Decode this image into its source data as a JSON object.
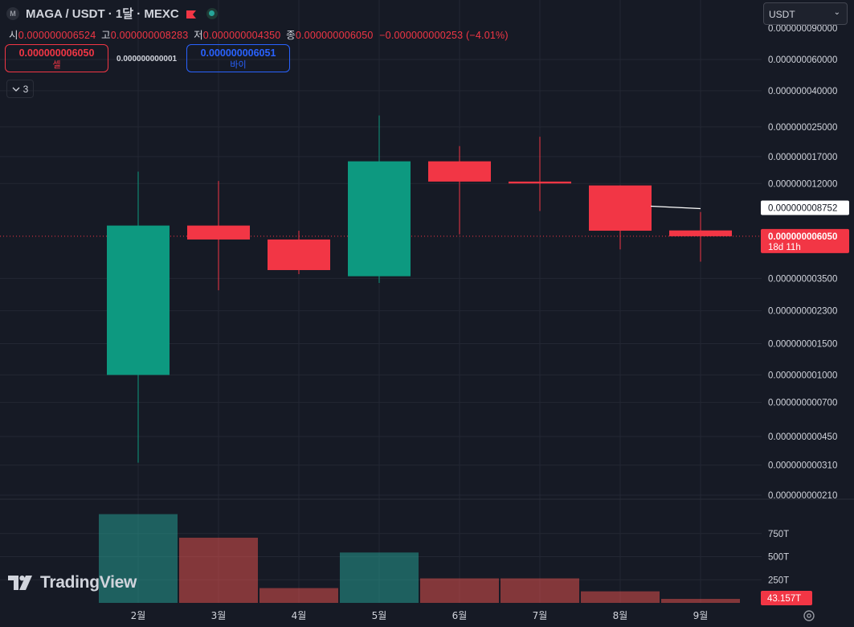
{
  "header": {
    "symbol": "MAGA / USDT · 1달 · MEXC",
    "coin_icon": "coin-logo-icon",
    "flag_icon": "flag-icon",
    "live_icon": "live-status-dot-icon"
  },
  "ohlc": {
    "open_label": "시",
    "open": "0.000000006524",
    "high_label": "고",
    "high": "0.000000008283",
    "low_label": "저",
    "low": "0.000000004350",
    "close_label": "종",
    "close": "0.000000006050",
    "change": "−0.000000000253 (−4.01%)"
  },
  "trade": {
    "sell_price": "0.000000006050",
    "sell_label": "셀",
    "spread": "0.000000000001",
    "buy_price": "0.000000006051",
    "buy_label": "바이"
  },
  "indicators_collapse": {
    "count": "3",
    "icon": "chevron-down-icon"
  },
  "currency_select": {
    "value": "USDT",
    "icon": "chevron-down-icon"
  },
  "branding": {
    "logo_text": "TradingView"
  },
  "colors": {
    "background": "#161a25",
    "up": "#0d9980",
    "down": "#f23645",
    "up_volume": "#26a69a",
    "down_volume": "#ef5350",
    "grid": "#232733",
    "text": "#d1d4dc"
  },
  "chart_data": {
    "type": "candlestick",
    "y_scale": "log",
    "categories": [
      "2월",
      "3월",
      "4월",
      "5월",
      "6월",
      "7월",
      "8월",
      "9월"
    ],
    "candles": [
      {
        "month": "2월",
        "open": 1e-09,
        "high": 1.4e-08,
        "low": 3.2e-10,
        "close": 6.95e-09
      },
      {
        "month": "3월",
        "open": 6.95e-09,
        "high": 1.24e-08,
        "low": 3e-09,
        "close": 5.8e-09
      },
      {
        "month": "4월",
        "open": 5.8e-09,
        "high": 6.5e-09,
        "low": 3.7e-09,
        "close": 3.9e-09
      },
      {
        "month": "5월",
        "open": 3.6e-09,
        "high": 2.9e-08,
        "low": 3.3e-09,
        "close": 1.6e-08
      },
      {
        "month": "6월",
        "open": 1.6e-08,
        "high": 1.95e-08,
        "low": 6.2e-09,
        "close": 1.23e-08
      },
      {
        "month": "7월",
        "open": 1.23e-08,
        "high": 2.2e-08,
        "low": 8.4e-09,
        "close": 1.2e-08
      },
      {
        "month": "8월",
        "open": 1.17e-08,
        "high": 1.17e-08,
        "low": 5.1e-09,
        "close": 6.5e-09
      },
      {
        "month": "9월",
        "open": 6.524e-09,
        "high": 8.283e-09,
        "low": 4.35e-09,
        "close": 6.05e-09
      }
    ],
    "volume": [
      {
        "month": "2월",
        "value": 960,
        "dir": "up"
      },
      {
        "month": "3월",
        "value": 705,
        "dir": "down"
      },
      {
        "month": "4월",
        "value": 160,
        "dir": "down"
      },
      {
        "month": "5월",
        "value": 545,
        "dir": "up"
      },
      {
        "month": "6월",
        "value": 265,
        "dir": "down"
      },
      {
        "month": "7월",
        "value": 265,
        "dir": "down"
      },
      {
        "month": "8월",
        "value": 125,
        "dir": "down"
      },
      {
        "month": "9월",
        "value": 43.157,
        "dir": "down"
      }
    ],
    "price_axis_ticks": [
      {
        "value": 9e-08,
        "label": "0.000000090000"
      },
      {
        "value": 6e-08,
        "label": "0.000000060000"
      },
      {
        "value": 4e-08,
        "label": "0.000000040000"
      },
      {
        "value": 2.5e-08,
        "label": "0.000000025000"
      },
      {
        "value": 1.7e-08,
        "label": "0.000000017000"
      },
      {
        "value": 1.2e-08,
        "label": "0.000000012000"
      },
      {
        "value": 3.5e-09,
        "label": "0.000000003500"
      },
      {
        "value": 2.3e-09,
        "label": "0.000000002300"
      },
      {
        "value": 1.5e-09,
        "label": "0.000000001500"
      },
      {
        "value": 1e-09,
        "label": "0.000000001000"
      },
      {
        "value": 7e-10,
        "label": "0.000000000700"
      },
      {
        "value": 4.5e-10,
        "label": "0.000000000450"
      },
      {
        "value": 3.1e-10,
        "label": "0.000000000310"
      },
      {
        "value": 2.1e-10,
        "label": "0.000000000210"
      }
    ],
    "volume_axis_ticks": [
      {
        "value": 750,
        "label": "750T"
      },
      {
        "value": 500,
        "label": "500T"
      },
      {
        "value": 250,
        "label": "250T"
      }
    ],
    "price_labels": [
      {
        "value": 8.752e-09,
        "label": "0.000000008752",
        "style": "white"
      },
      {
        "value": 6.05e-09,
        "label": "0.000000006050",
        "sub": "18d 11h",
        "style": "red"
      }
    ],
    "volume_label": {
      "value": 43.157,
      "label": "43.157T"
    },
    "ma_line": {
      "from": "8월",
      "to": "9월",
      "value": 8.752e-09
    },
    "current_price_line": 6.05e-09
  }
}
